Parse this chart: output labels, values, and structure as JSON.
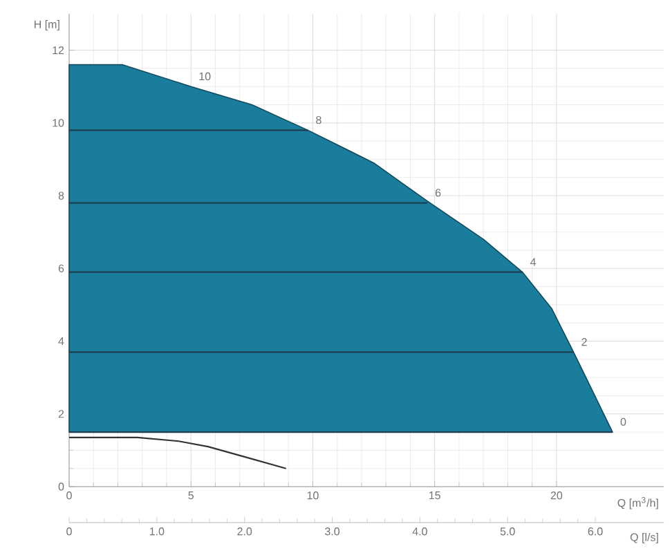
{
  "chart_data": {
    "type": "line",
    "xlabel": "Q [m$^{3}$/h]",
    "ylabel": "H [m]",
    "x2label": "Q [l/s]",
    "xlim": [
      0,
      24.4
    ],
    "ylim": [
      0,
      13
    ],
    "xticks": [
      0,
      5,
      10,
      15,
      20
    ],
    "yticks": [
      0,
      2,
      4,
      6,
      8,
      10,
      12
    ],
    "x2lim": [
      0,
      6.78
    ],
    "x2ticks": [
      0,
      {
        "value": 1,
        "label": "1.0"
      },
      {
        "value": 2,
        "label": "2.0"
      },
      {
        "value": 3,
        "label": "3.0"
      },
      {
        "value": 4,
        "label": "4.0"
      },
      {
        "value": 5,
        "label": "5.0"
      },
      {
        "value": 6,
        "label": "6.0"
      }
    ],
    "grid": true,
    "series": [
      {
        "type": "area",
        "color": "#1b7d9c",
        "x": [
          0,
          2.2,
          5,
          7.5,
          9.8,
          12.5,
          14.7,
          17,
          18.6,
          19.8,
          20.7,
          21.5,
          22.3
        ],
        "values": [
          11.6,
          11.6,
          11.0,
          10.5,
          9.8,
          8.9,
          7.85,
          6.8,
          5.9,
          4.9,
          3.7,
          2.6,
          1.5
        ]
      },
      {
        "color": "#1d3f52",
        "x": [
          0,
          9.8
        ],
        "values": [
          9.8,
          9.8
        ]
      },
      {
        "color": "#1d3f52",
        "x": [
          0,
          14.7
        ],
        "values": [
          7.8,
          7.8
        ]
      },
      {
        "color": "#1d3f52",
        "x": [
          0,
          18.6
        ],
        "values": [
          5.9,
          5.9
        ]
      },
      {
        "color": "#1d3f52",
        "x": [
          0,
          20.7
        ],
        "values": [
          3.7,
          3.7
        ]
      },
      {
        "color": "#1d3f52",
        "x": [
          0,
          22.3
        ],
        "values": [
          1.5,
          1.5
        ]
      },
      {
        "color": "#333333",
        "x": [
          0,
          2.8,
          4.5,
          5.7,
          7.3,
          8.9
        ],
        "values": [
          1.35,
          1.35,
          1.25,
          1.1,
          0.8,
          0.5
        ]
      }
    ],
    "annotations": [
      {
        "text": "10",
        "x": 5,
        "y": 11.0
      },
      {
        "text": "8",
        "x": 9.8,
        "y": 9.8
      },
      {
        "text": "6",
        "x": 14.7,
        "y": 7.8
      },
      {
        "text": "4",
        "x": 18.6,
        "y": 5.9
      },
      {
        "text": "2",
        "x": 20.7,
        "y": 3.7
      },
      {
        "text": "0",
        "x": 22.3,
        "y": 1.5
      }
    ]
  }
}
